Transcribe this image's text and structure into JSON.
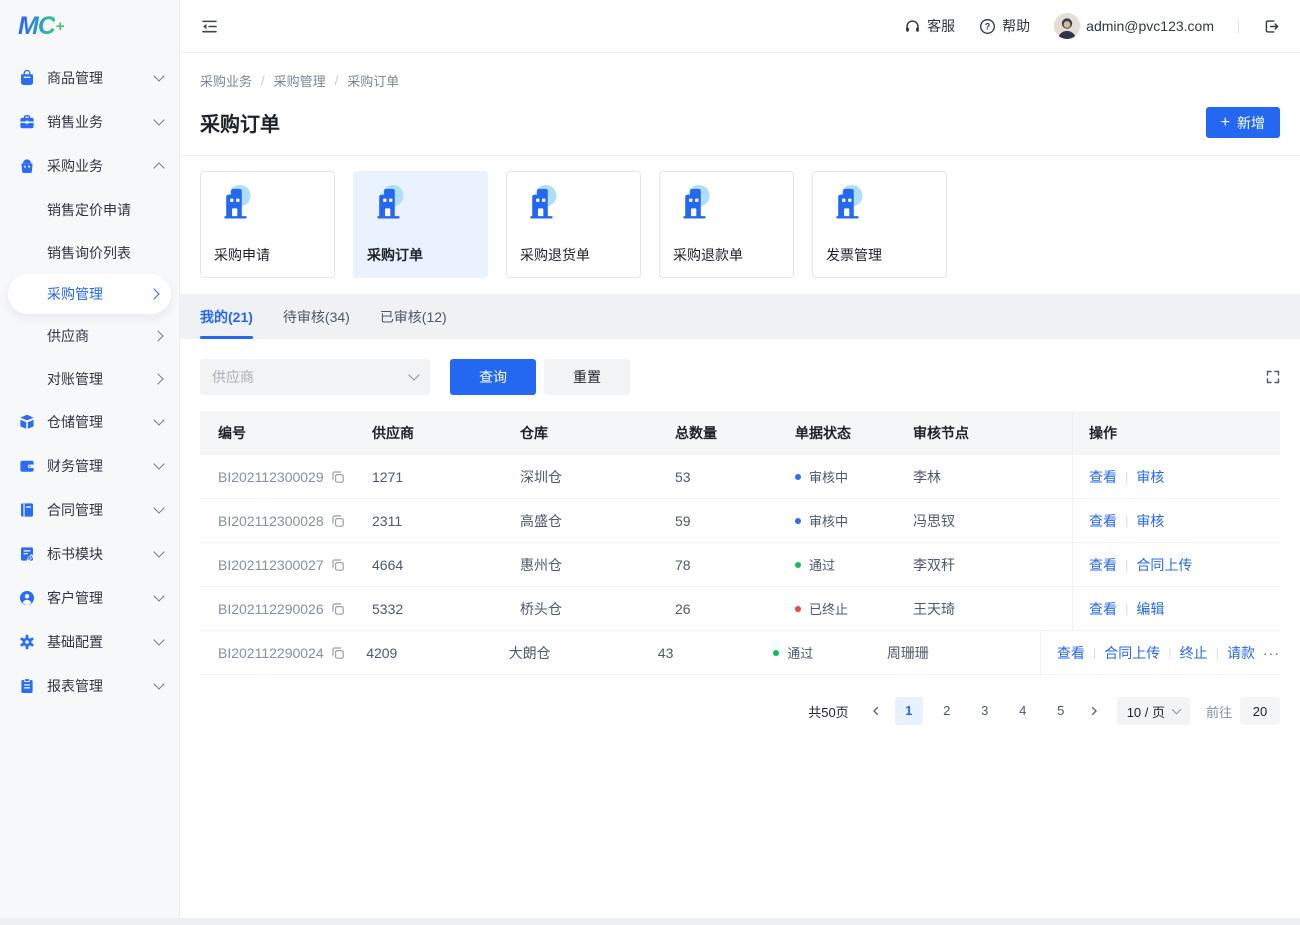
{
  "brand": {
    "logo_text": "MC",
    "logo_plus": "+"
  },
  "topbar": {
    "service_label": "客服",
    "help_label": "帮助",
    "user_email": "admin@pvc123.com"
  },
  "breadcrumb": {
    "items": [
      "采购业务",
      "采购管理",
      "采购订单"
    ],
    "separator": "/"
  },
  "page": {
    "title": "采购订单",
    "add_button_label": "新增",
    "add_button_plus": "+"
  },
  "sidebar": {
    "items": [
      {
        "label": "商品管理",
        "icon": "product-icon",
        "chevron": "down"
      },
      {
        "label": "销售业务",
        "icon": "sales-icon",
        "chevron": "down"
      },
      {
        "label": "采购业务",
        "icon": "purchase-icon",
        "chevron": "up",
        "expanded": true,
        "children": [
          {
            "label": "销售定价申请"
          },
          {
            "label": "销售询价列表"
          },
          {
            "label": "采购管理",
            "arrow": true,
            "active": true
          },
          {
            "label": "供应商",
            "arrow": true
          },
          {
            "label": "对账管理",
            "arrow": true
          }
        ]
      },
      {
        "label": "仓储管理",
        "icon": "warehouse-icon",
        "chevron": "down"
      },
      {
        "label": "财务管理",
        "icon": "finance-icon",
        "chevron": "down"
      },
      {
        "label": "合同管理",
        "icon": "contract-icon",
        "chevron": "down"
      },
      {
        "label": "标书模块",
        "icon": "tender-icon",
        "chevron": "down"
      },
      {
        "label": "客户管理",
        "icon": "customer-icon",
        "chevron": "down"
      },
      {
        "label": "基础配置",
        "icon": "settings-icon",
        "chevron": "down"
      },
      {
        "label": "报表管理",
        "icon": "report-icon",
        "chevron": "down"
      }
    ]
  },
  "cards": [
    {
      "label": "采购申请",
      "active": false
    },
    {
      "label": "采购订单",
      "active": true
    },
    {
      "label": "采购退货单",
      "active": false
    },
    {
      "label": "采购退款单",
      "active": false
    },
    {
      "label": "发票管理",
      "active": false
    }
  ],
  "tabs": [
    {
      "label": "我的",
      "count": 21,
      "active": true
    },
    {
      "label": "待审核",
      "count": 34,
      "active": false
    },
    {
      "label": "已审核",
      "count": 12,
      "active": false
    }
  ],
  "filters": {
    "supplier_placeholder": "供应商",
    "search_label": "查询",
    "reset_label": "重置"
  },
  "table": {
    "columns": [
      "编号",
      "供应商",
      "仓库",
      "总数量",
      "单据状态",
      "审核节点",
      "操作"
    ],
    "rows": [
      {
        "id": "BI202112300029",
        "supplier": "1271",
        "warehouse": "深圳仓",
        "qty": "53",
        "status": {
          "label": "审核中",
          "color": "#2b6cf6"
        },
        "node": "李林",
        "actions": [
          "查看",
          "审核"
        ]
      },
      {
        "id": "BI202112300028",
        "supplier": "2311",
        "warehouse": "高盛仓",
        "qty": "59",
        "status": {
          "label": "审核中",
          "color": "#2b6cf6"
        },
        "node": "冯思钗",
        "actions": [
          "查看",
          "审核"
        ]
      },
      {
        "id": "BI202112300027",
        "supplier": "4664",
        "warehouse": "惠州仓",
        "qty": "78",
        "status": {
          "label": "通过",
          "color": "#0fbf5f"
        },
        "node": "李双秆",
        "actions": [
          "查看",
          "合同上传"
        ]
      },
      {
        "id": "BI202112290026",
        "supplier": "5332",
        "warehouse": "桥头仓",
        "qty": "26",
        "status": {
          "label": "已终止",
          "color": "#f53f3f"
        },
        "node": "王天琦",
        "actions": [
          "查看",
          "编辑"
        ]
      },
      {
        "id": "BI202112290024",
        "supplier": "4209",
        "warehouse": "大朗仓",
        "qty": "43",
        "status": {
          "label": "通过",
          "color": "#0fbf5f"
        },
        "node": "周珊珊",
        "actions": [
          "查看",
          "合同上传",
          "终止",
          "请款"
        ],
        "more": "···"
      }
    ]
  },
  "pagination": {
    "total_label": "共50页",
    "pages": [
      "1",
      "2",
      "3",
      "4",
      "5"
    ],
    "active_page": "1",
    "page_size": "10 / 页",
    "goto_label": "前往",
    "goto_value": "20"
  },
  "colors": {
    "primary": "#2468f2",
    "active_card_bg": "#e9f2fe",
    "status_processing": "#2b6cf6",
    "status_passed": "#0fbf5f",
    "status_terminated": "#f53f3f"
  }
}
